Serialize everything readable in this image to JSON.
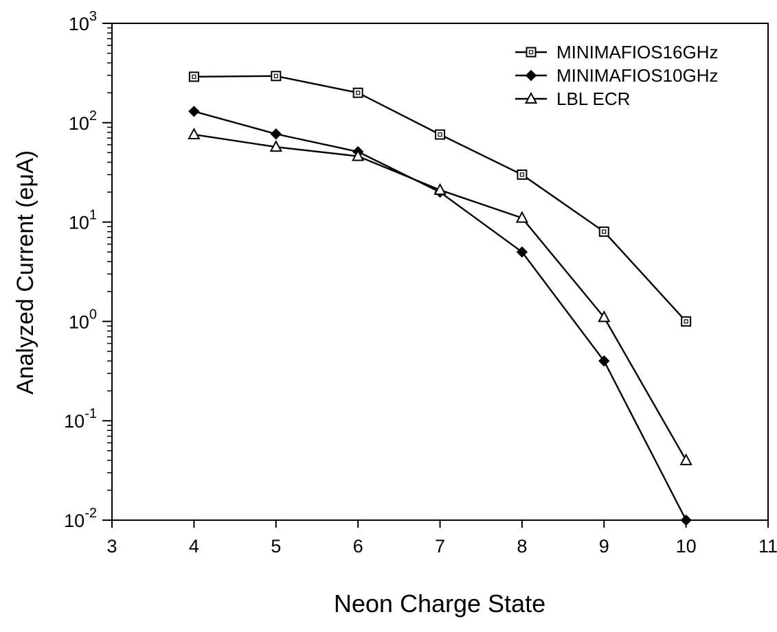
{
  "chart_data": {
    "type": "line",
    "title": "",
    "xlabel": "Neon Charge State",
    "ylabel": "Analyzed Current (eμA)",
    "xlim": [
      3,
      11
    ],
    "xticks": [
      "3",
      "4",
      "5",
      "6",
      "7",
      "8",
      "9",
      "10",
      "11"
    ],
    "yscale": "log",
    "ylim": [
      0.01,
      1000
    ],
    "yticks": [
      {
        "base": "10",
        "exp": "-2"
      },
      {
        "base": "10",
        "exp": "-1"
      },
      {
        "base": "10",
        "exp": "0"
      },
      {
        "base": "10",
        "exp": "1"
      },
      {
        "base": "10",
        "exp": "2"
      },
      {
        "base": "10",
        "exp": "3"
      }
    ],
    "grid": false,
    "legend_position": "top-right",
    "series": [
      {
        "name": "MINIMAFIOS16GHz",
        "marker": "open-square",
        "x": [
          4,
          5,
          6,
          7,
          8,
          9,
          10
        ],
        "y": [
          290,
          295,
          200,
          76,
          30,
          8,
          1.0
        ]
      },
      {
        "name": "MINIMAFIOS10GHz",
        "marker": "filled-diamond",
        "x": [
          4,
          5,
          6,
          7,
          8,
          9,
          10
        ],
        "y": [
          130,
          77,
          51,
          20,
          5,
          0.4,
          0.01
        ]
      },
      {
        "name": "LBL ECR",
        "marker": "open-triangle",
        "x": [
          4,
          5,
          6,
          7,
          8,
          9,
          10
        ],
        "y": [
          76,
          57,
          46,
          21,
          11,
          1.1,
          0.04
        ]
      }
    ]
  }
}
